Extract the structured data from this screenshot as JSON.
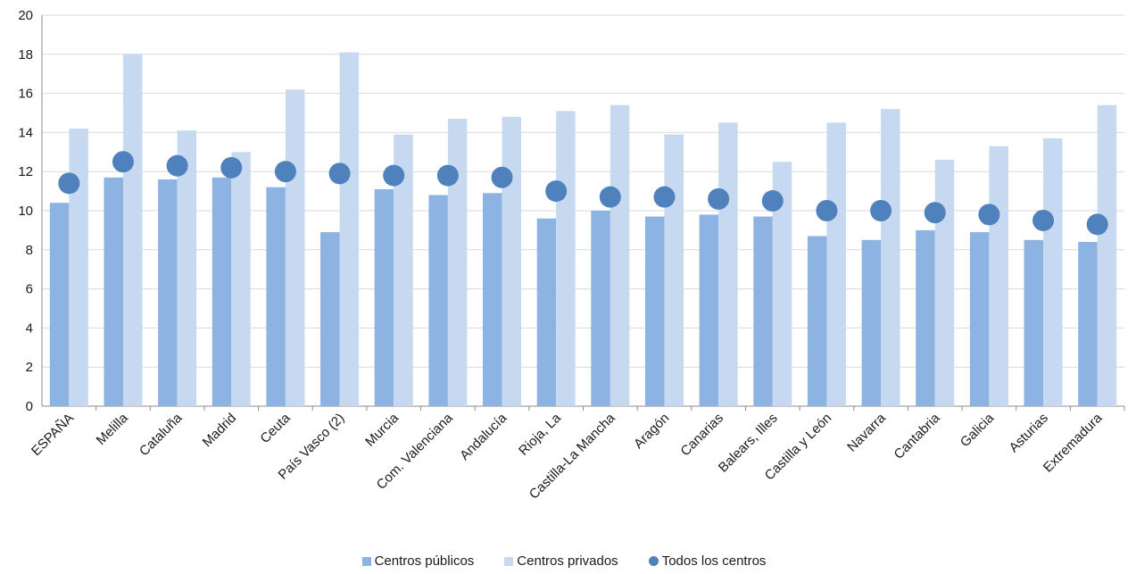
{
  "chart_data": {
    "type": "bar",
    "categories": [
      "ESPAÑA",
      "Melilla",
      "Cataluña",
      "Madrid",
      "Ceuta",
      "País Vasco (2)",
      "Murcia",
      "Com. Valenciana",
      "Andalucía",
      "Rioja, La",
      "Castilla-La Mancha",
      "Aragón",
      "Canarias",
      "Balears, Illes",
      "Castilla y León",
      "Navarra",
      "Cantabria",
      "Galicia",
      "Asturias",
      "Extremadura"
    ],
    "series": [
      {
        "name": "Centros públicos",
        "type": "bar",
        "color": "#8db3e2",
        "values": [
          10.4,
          11.7,
          11.6,
          11.7,
          11.2,
          8.9,
          11.1,
          10.8,
          10.9,
          9.6,
          10.0,
          9.7,
          9.8,
          9.7,
          8.7,
          8.5,
          9.0,
          8.9,
          8.5,
          8.4
        ]
      },
      {
        "name": "Centros privados",
        "type": "bar",
        "color": "#c6d9f1",
        "values": [
          14.2,
          18.0,
          14.1,
          13.0,
          16.2,
          18.1,
          13.9,
          14.7,
          14.8,
          15.1,
          15.4,
          13.9,
          14.5,
          12.5,
          14.5,
          15.2,
          12.6,
          13.3,
          13.7,
          15.4
        ]
      },
      {
        "name": "Todos los centros",
        "type": "scatter",
        "color": "#4f81bd",
        "values": [
          11.4,
          12.5,
          12.3,
          12.2,
          12.0,
          11.9,
          11.8,
          11.8,
          11.7,
          11.0,
          10.7,
          10.7,
          10.6,
          10.5,
          10.0,
          10.0,
          9.9,
          9.8,
          9.5,
          9.3
        ]
      }
    ],
    "ylim": [
      0,
      20
    ],
    "yticks": [
      "0",
      "2",
      "4",
      "6",
      "8",
      "10",
      "12",
      "14",
      "16",
      "18",
      "20"
    ],
    "grid": true,
    "legend_position": "bottom",
    "title": "",
    "xlabel": "",
    "ylabel": ""
  }
}
